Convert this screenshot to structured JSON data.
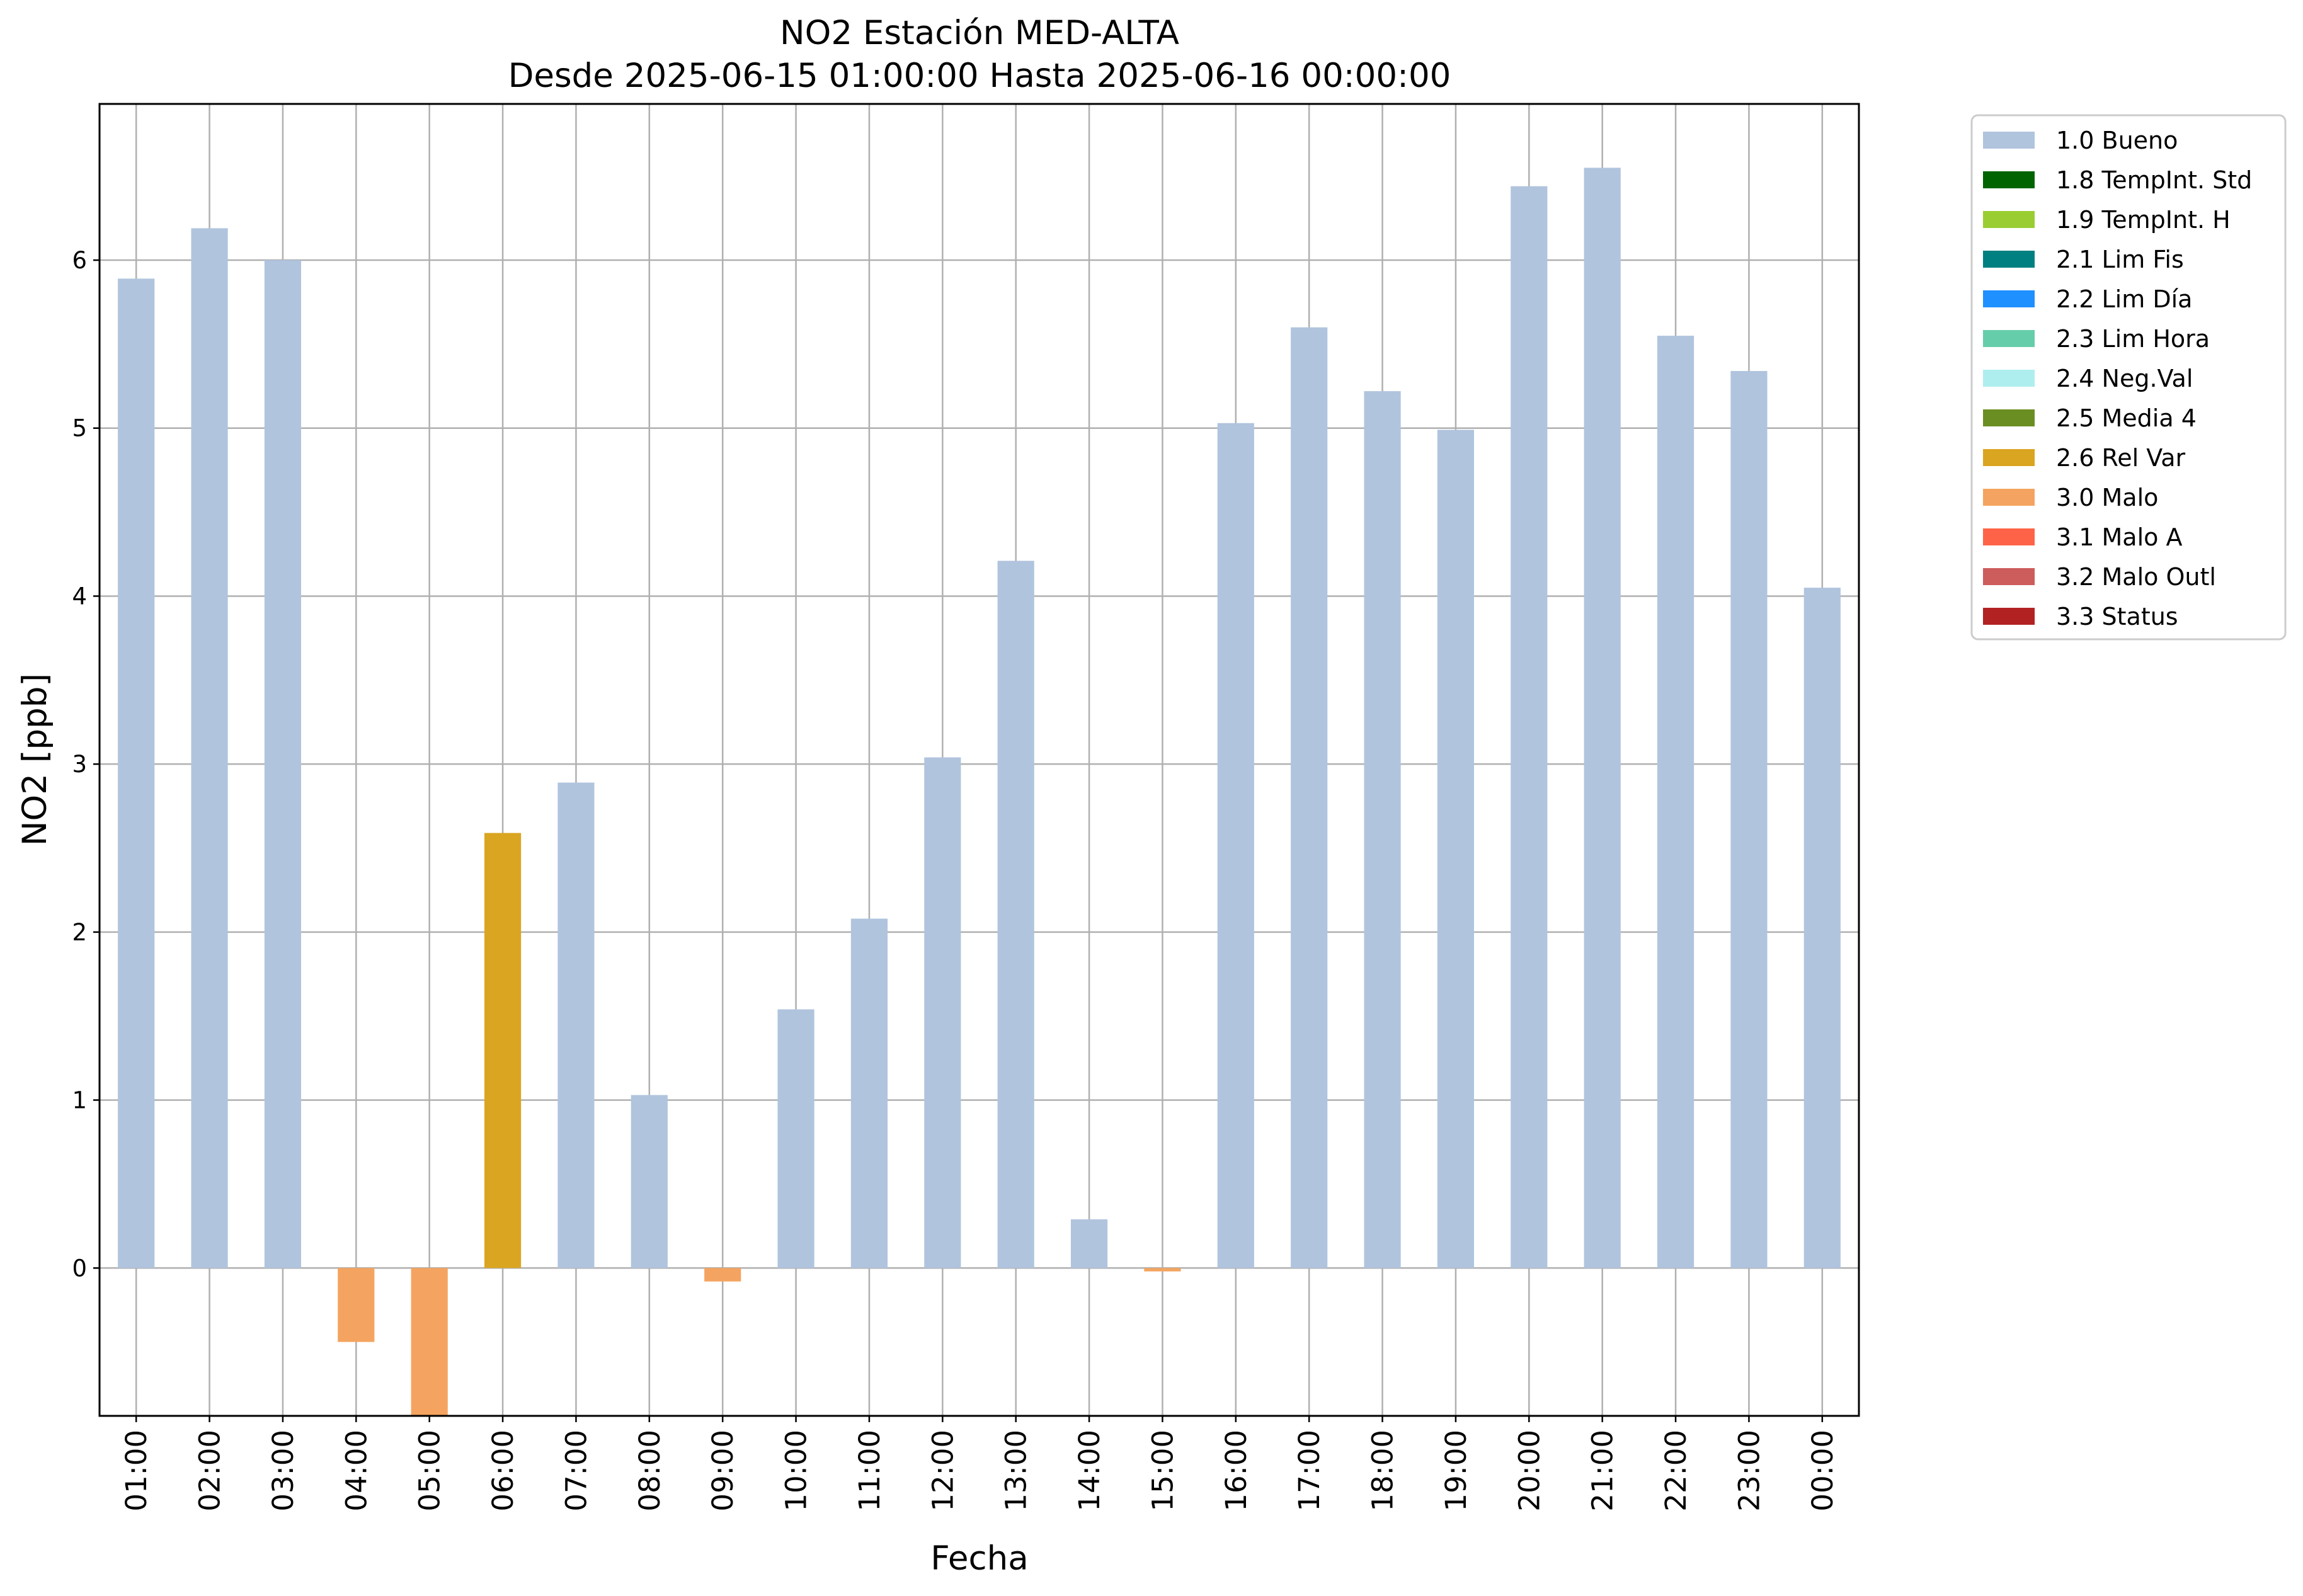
{
  "chart_data": {
    "type": "bar",
    "title": "NO2 Estación MED-ALTA",
    "subtitle": "Desde 2025-06-15 01:00:00 Hasta 2025-06-16 00:00:00",
    "xlabel": "Fecha",
    "ylabel": "NO2 [ppb]",
    "ylim": [
      -0.88,
      6.93
    ],
    "yticks": [
      0,
      1,
      2,
      3,
      4,
      5,
      6
    ],
    "grid": true,
    "legend_position": "outside-top-right",
    "categories": [
      "01:00",
      "02:00",
      "03:00",
      "04:00",
      "05:00",
      "06:00",
      "07:00",
      "08:00",
      "09:00",
      "10:00",
      "11:00",
      "12:00",
      "13:00",
      "14:00",
      "15:00",
      "16:00",
      "17:00",
      "18:00",
      "19:00",
      "20:00",
      "21:00",
      "22:00",
      "23:00",
      "00:00"
    ],
    "values": [
      5.89,
      6.19,
      6.0,
      -0.44,
      -0.88,
      2.59,
      2.89,
      1.03,
      -0.08,
      1.54,
      2.08,
      3.04,
      4.21,
      0.29,
      -0.02,
      5.03,
      5.6,
      5.22,
      4.99,
      6.44,
      6.55,
      5.55,
      5.34,
      4.05
    ],
    "flags": [
      "1.0 Bueno",
      "1.0 Bueno",
      "1.0 Bueno",
      "3.0 Malo",
      "3.0 Malo",
      "2.6 Rel Var",
      "1.0 Bueno",
      "1.0 Bueno",
      "3.0 Malo",
      "1.0 Bueno",
      "1.0 Bueno",
      "1.0 Bueno",
      "1.0 Bueno",
      "1.0 Bueno",
      "3.0 Malo",
      "1.0 Bueno",
      "1.0 Bueno",
      "1.0 Bueno",
      "1.0 Bueno",
      "1.0 Bueno",
      "1.0 Bueno",
      "1.0 Bueno",
      "1.0 Bueno",
      "1.0 Bueno"
    ],
    "legend": [
      {
        "label": "1.0 Bueno",
        "color": "#b0c4de"
      },
      {
        "label": "1.8 TempInt. Std",
        "color": "#006400"
      },
      {
        "label": "1.9 TempInt. H",
        "color": "#9acd32"
      },
      {
        "label": "2.1 Lim Fis",
        "color": "#008080"
      },
      {
        "label": "2.2 Lim Día",
        "color": "#1e90ff"
      },
      {
        "label": "2.3 Lim Hora",
        "color": "#66cdaa"
      },
      {
        "label": "2.4 Neg.Val",
        "color": "#afeeee"
      },
      {
        "label": "2.5 Media 4",
        "color": "#6b8e23"
      },
      {
        "label": "2.6 Rel Var",
        "color": "#daa520"
      },
      {
        "label": "3.0 Malo",
        "color": "#f4a460"
      },
      {
        "label": "3.1 Malo A",
        "color": "#ff6347"
      },
      {
        "label": "3.2 Malo Outl",
        "color": "#cd5c5c"
      },
      {
        "label": "3.3 Status",
        "color": "#b22222"
      }
    ]
  }
}
